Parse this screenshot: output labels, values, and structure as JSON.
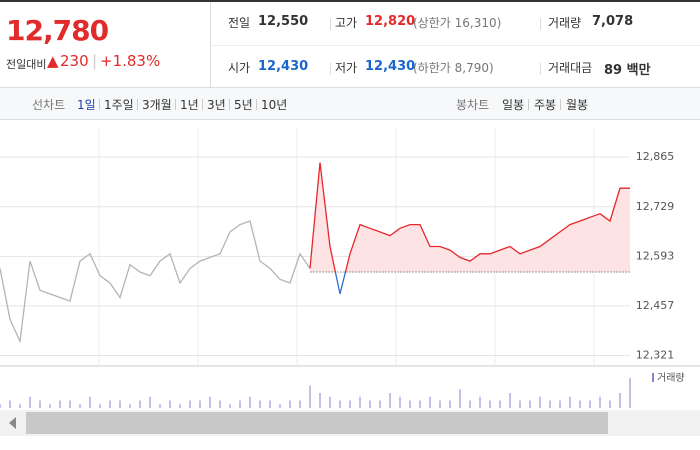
{
  "summary": {
    "price": "12,780",
    "change_label": "전일대비",
    "change": "230",
    "rate": "+1.83%"
  },
  "quote_table": [
    [
      {
        "label": "전일",
        "value": "12,550"
      },
      {
        "label": "고가",
        "value": "12,820",
        "extra": "(상한가 16,310)"
      },
      {
        "label": "거래량",
        "value": "7,078"
      }
    ],
    [
      {
        "label": "시가",
        "value": "12,430"
      },
      {
        "label": "저가",
        "value": "12,430",
        "extra": "(하한가 8,790)"
      },
      {
        "label": "거래대금",
        "value": "89 백만"
      }
    ]
  ],
  "line_tabs": {
    "label": "선차트",
    "items": [
      "1일",
      "1주일",
      "3개월",
      "1년",
      "3년",
      "5년",
      "10년"
    ]
  },
  "candle_tabs": {
    "label": "봉차트",
    "items": [
      "일봉",
      "주봉",
      "월봉"
    ]
  },
  "chart_data": {
    "type": "line",
    "ylim": [
      12295,
      12945
    ],
    "yticks": [
      {
        "value": 12865,
        "label": "12,865"
      },
      {
        "value": 12729,
        "label": "12,729"
      },
      {
        "value": 12593,
        "label": "12,593"
      },
      {
        "value": 12457,
        "label": "12,457"
      },
      {
        "value": 12321,
        "label": "12,321"
      }
    ],
    "base": 12550,
    "grid": true,
    "series": [
      {
        "color": "#b4b4b4",
        "values": [
          12560,
          12420,
          12360,
          12580,
          12500,
          12490,
          12480,
          12470,
          12580,
          12600,
          12540,
          12520,
          12480,
          12570,
          12550,
          12540,
          12580,
          12600,
          12520,
          12560,
          12580,
          12590,
          12600,
          12660,
          12680,
          12690,
          12580,
          12560,
          12530,
          12520,
          12600,
          12560,
          null,
          null,
          null,
          null,
          null,
          null,
          null,
          null,
          null,
          null,
          null,
          null,
          null,
          null,
          null,
          null,
          null,
          null,
          null,
          null,
          null,
          null,
          null,
          null,
          null,
          null,
          null,
          null,
          null,
          null,
          null,
          null
        ]
      },
      {
        "color": "#e8262b",
        "below_color": "#2a6fd6",
        "fill": "#fde3e4",
        "values": [
          null,
          null,
          null,
          null,
          null,
          null,
          null,
          null,
          null,
          null,
          null,
          null,
          null,
          null,
          null,
          null,
          null,
          null,
          null,
          null,
          null,
          null,
          null,
          null,
          null,
          null,
          null,
          null,
          null,
          null,
          null,
          12560,
          12850,
          12620,
          12490,
          12600,
          12680,
          12670,
          12660,
          12650,
          12670,
          12680,
          12680,
          12620,
          12620,
          12610,
          12590,
          12580,
          12600,
          12600,
          12610,
          12620,
          12600,
          12610,
          12620,
          12640,
          12660,
          12680,
          12690,
          12700,
          12710,
          12690,
          12780,
          12780
        ]
      }
    ],
    "volume": {
      "name": "거래량",
      "color": "#8a7fd0",
      "values": [
        1,
        2,
        1,
        3,
        2,
        1,
        2,
        2,
        1,
        3,
        1,
        2,
        2,
        1,
        2,
        3,
        1,
        2,
        1,
        2,
        2,
        3,
        2,
        1,
        2,
        3,
        2,
        2,
        1,
        2,
        2,
        6,
        4,
        3,
        2,
        2,
        3,
        2,
        2,
        4,
        3,
        2,
        2,
        3,
        2,
        2,
        5,
        2,
        3,
        2,
        2,
        4,
        2,
        2,
        3,
        2,
        2,
        3,
        2,
        2,
        3,
        2,
        4,
        8
      ]
    }
  }
}
